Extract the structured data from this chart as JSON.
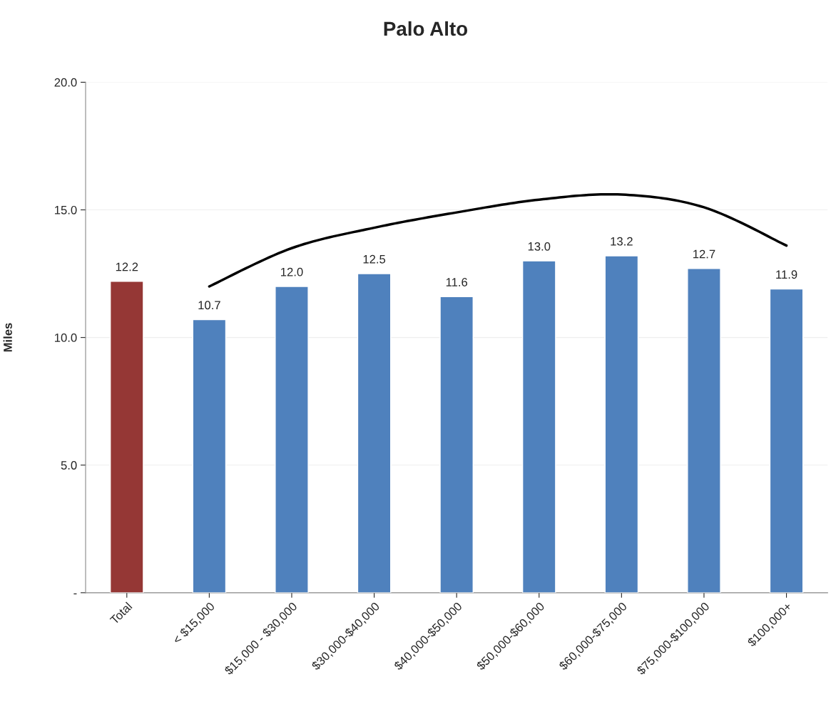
{
  "chart_data": {
    "type": "bar",
    "title": "Palo Alto",
    "ylabel": "Miles",
    "categories": [
      "Total",
      "< $15,000",
      "$15,000 - $30,000",
      "$30,000-$40,000",
      "$40,000-$50,000",
      "$50,000-$60,000",
      "$60,000-$75,000",
      "$75,000-$100,000",
      "$100,000+"
    ],
    "series": [
      {
        "colors": [
          "#953735",
          "#4f81bd",
          "#4f81bd",
          "#4f81bd",
          "#4f81bd",
          "#4f81bd",
          "#4f81bd",
          "#4f81bd",
          "#4f81bd"
        ],
        "values": [
          12.2,
          10.7,
          12.0,
          12.5,
          11.6,
          13.0,
          13.2,
          12.7,
          11.9
        ],
        "value_labels": [
          "12.2",
          "10.7",
          "12.0",
          "12.5",
          "11.6",
          "13.0",
          "13.2",
          "12.7",
          "11.9"
        ]
      },
      {
        "type": "line",
        "color": "#000000",
        "values": [
          null,
          12.0,
          13.5,
          14.3,
          14.9,
          15.4,
          15.6,
          15.1,
          13.6
        ]
      }
    ],
    "ylim": [
      0,
      20
    ],
    "yticks": [
      {
        "value": 0,
        "label": "-"
      },
      {
        "value": 5,
        "label": "5.0"
      },
      {
        "value": 10,
        "label": "10.0"
      },
      {
        "value": 15,
        "label": "15.0"
      },
      {
        "value": 20,
        "label": "20.0"
      }
    ],
    "grid": "y"
  }
}
